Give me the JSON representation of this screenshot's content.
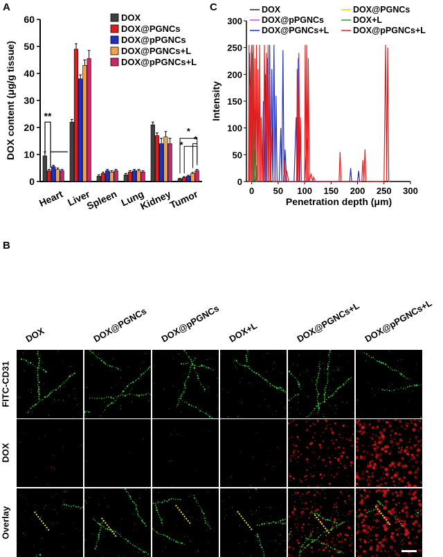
{
  "panel_labels": {
    "a": "A",
    "b": "B",
    "c": "C"
  },
  "chart_data": [
    {
      "type": "bar",
      "panel": "A",
      "ylabel": "DOX content (μg/g tissue)",
      "ylim": [
        0,
        60
      ],
      "yticks": [
        0,
        10,
        20,
        30,
        40,
        50,
        60
      ],
      "categories": [
        "Heart",
        "Liver",
        "Spleen",
        "Lung",
        "Kidney",
        "Tumor"
      ],
      "series": [
        {
          "name": "DOX",
          "color": "#404040",
          "values": [
            9.5,
            22,
            2,
            2.5,
            21,
            1
          ],
          "errors": [
            1.5,
            1,
            0.5,
            0.5,
            1,
            0.2
          ]
        },
        {
          "name": "DOX@PGNCs",
          "color": "#d62020",
          "values": [
            4,
            49,
            3,
            3.5,
            17,
            1.5
          ],
          "errors": [
            0.5,
            2,
            0.5,
            0.5,
            1,
            0.3
          ]
        },
        {
          "name": "DOX@pPGNCs",
          "color": "#1f2fbf",
          "values": [
            5.5,
            38,
            4,
            4,
            14,
            2
          ],
          "errors": [
            0.5,
            1.5,
            0.5,
            0.5,
            2,
            0.3
          ]
        },
        {
          "name": "DOX@PGNCs+L",
          "color": "#f0a050",
          "values": [
            4.5,
            43,
            3.5,
            4,
            16.5,
            3
          ],
          "errors": [
            0.5,
            2,
            0.5,
            0.5,
            2,
            0.4
          ]
        },
        {
          "name": "DOX@pPGNCs+L",
          "color": "#c8286a",
          "values": [
            4,
            45.5,
            4,
            3.5,
            14,
            4
          ],
          "errors": [
            0.5,
            3,
            0.5,
            0.5,
            2,
            0.5
          ]
        }
      ],
      "annotations": [
        "**",
        "*",
        "*",
        "*"
      ],
      "legend_position": "top-right"
    },
    {
      "type": "line",
      "panel": "C",
      "xlabel": "Penetration depth (μm)",
      "ylabel": "Intensity",
      "xlim": [
        -10,
        300
      ],
      "ylim": [
        0,
        300
      ],
      "xticks": [
        0,
        50,
        100,
        150,
        200,
        250,
        300
      ],
      "yticks": [
        0,
        50,
        100,
        150,
        200,
        250,
        300
      ],
      "legend_position": "top",
      "series": [
        {
          "name": "DOX",
          "color": "#222222",
          "x": [
            -8,
            -5,
            -4,
            -3,
            -2,
            0,
            2,
            3,
            4,
            6,
            10
          ],
          "y": [
            0,
            0,
            240,
            20,
            200,
            255,
            0,
            255,
            30,
            0,
            0
          ]
        },
        {
          "name": "DOX@PGNCs",
          "color": "#e8d800",
          "x": [
            -8,
            -6,
            -5,
            -4,
            0
          ],
          "y": [
            0,
            0,
            60,
            0,
            0
          ]
        },
        {
          "name": "DOX@pPGNCs",
          "color": "#c050c0",
          "x": [
            -8,
            -5,
            -4,
            -3,
            -1,
            0,
            2,
            4,
            6,
            8,
            10
          ],
          "y": [
            0,
            0,
            180,
            0,
            240,
            0,
            200,
            0,
            120,
            0,
            0
          ]
        },
        {
          "name": "DOX+L",
          "color": "#2a9a2a",
          "x": [
            -8,
            0,
            1,
            2,
            3,
            4,
            6,
            8,
            9,
            10,
            12
          ],
          "y": [
            0,
            0,
            240,
            0,
            180,
            0,
            60,
            0,
            30,
            0,
            0
          ]
        },
        {
          "name": "DOX@PGNCs+L",
          "color": "#2030c0",
          "x": [
            15,
            20,
            22,
            24,
            26,
            28,
            30,
            32,
            34,
            36,
            38,
            40,
            42,
            44,
            46,
            48,
            52,
            55,
            57,
            59,
            61,
            63,
            66,
            70,
            80,
            84,
            86,
            88,
            90,
            95,
            100,
            104,
            107,
            110,
            185,
            187,
            189,
            200,
            202,
            204
          ],
          "y": [
            0,
            0,
            150,
            0,
            200,
            0,
            230,
            0,
            255,
            0,
            210,
            0,
            255,
            0,
            160,
            0,
            0,
            100,
            0,
            245,
            0,
            60,
            0,
            0,
            0,
            120,
            0,
            230,
            0,
            0,
            0,
            80,
            0,
            0,
            0,
            25,
            0,
            0,
            20,
            0
          ]
        },
        {
          "name": "DOX@pPGNCs+L",
          "color": "#e02020",
          "x": [
            -8,
            -6,
            -5,
            -4,
            -2,
            -1,
            0,
            2,
            3,
            5,
            6,
            8,
            9,
            11,
            12,
            14,
            15,
            17,
            18,
            20,
            22,
            24,
            26,
            28,
            29,
            31,
            32,
            34,
            35,
            37,
            40,
            60,
            62,
            64,
            66,
            70,
            80,
            85,
            86,
            88,
            89,
            91,
            92,
            94,
            97,
            100,
            101,
            103,
            104,
            106,
            107,
            109,
            112,
            115,
            117,
            120,
            165,
            167,
            169,
            200,
            208,
            210,
            212,
            214,
            216,
            218,
            250,
            253,
            255,
            257,
            259,
            262
          ],
          "y": [
            0,
            0,
            255,
            0,
            200,
            0,
            255,
            0,
            255,
            0,
            230,
            0,
            255,
            0,
            210,
            0,
            255,
            0,
            120,
            0,
            0,
            255,
            0,
            240,
            0,
            255,
            0,
            200,
            0,
            100,
            0,
            0,
            40,
            0,
            20,
            0,
            0,
            0,
            210,
            0,
            240,
            0,
            120,
            0,
            0,
            0,
            255,
            0,
            255,
            0,
            230,
            0,
            15,
            0,
            8,
            0,
            0,
            55,
            0,
            0,
            0,
            40,
            0,
            60,
            0,
            0,
            0,
            255,
            0,
            250,
            0,
            0
          ]
        }
      ]
    }
  ],
  "panel_b": {
    "columns": [
      "DOX",
      "DOX@PGNCs",
      "DOX@pPGNCs",
      "DOX+L",
      "DOX@PGNCs+L",
      "DOX@pPGNCs+L"
    ],
    "rows": [
      "FITC-CD31",
      "DOX",
      "Overlay"
    ],
    "green_density": [
      0.55,
      0.45,
      0.45,
      0.5,
      0.8,
      0.35
    ],
    "red_density": [
      0.05,
      0.02,
      0.03,
      0.05,
      0.55,
      0.95
    ],
    "green_color": "#3ad23a",
    "red_color": "#e01818"
  }
}
